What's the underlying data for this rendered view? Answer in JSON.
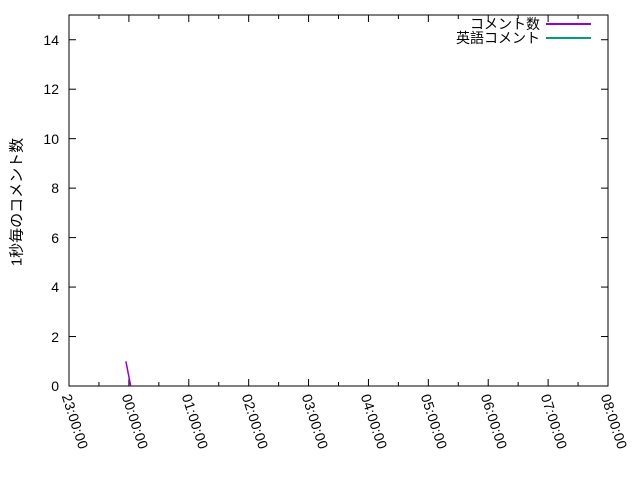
{
  "figure": {
    "background": "#ffffff",
    "axis_color": "#000000",
    "text_color": "#000000"
  },
  "chart_data": {
    "type": "line",
    "title": "",
    "xlabel": "",
    "ylabel": "1秒毎のコメント数",
    "x_tick_labels": [
      "23:00:00",
      "00:00:00",
      "01:00:00",
      "02:00:00",
      "03:00:00",
      "04:00:00",
      "05:00:00",
      "06:00:00",
      "07:00:00",
      "08:00:00"
    ],
    "x_minor_tick_interval_hours": 0.5,
    "xlim_hours": [
      0,
      9
    ],
    "y_ticks": [
      0,
      2,
      4,
      6,
      8,
      10,
      12,
      14
    ],
    "ylim": [
      0,
      15
    ],
    "grid": false,
    "legend_position": "top-right-inside",
    "series": [
      {
        "name": "コメント数",
        "color": "#9400D3",
        "points_hours_value": [
          [
            0.95,
            1
          ],
          [
            1.03,
            0
          ]
        ]
      },
      {
        "name": "英語コメント",
        "color": "#009E73",
        "points_hours_value": []
      }
    ]
  }
}
